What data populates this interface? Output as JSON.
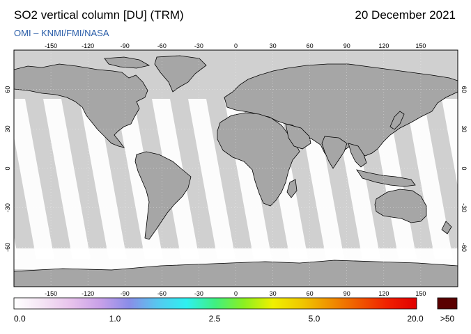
{
  "header": {
    "title": "SO2 vertical column [DU] (TRM)",
    "date": "20 December 2021",
    "subtitle": "OMI  –  KNMI/FMI/NASA"
  },
  "map": {
    "lon_ticks": [
      "-150",
      "-120",
      "-90",
      "-60",
      "-30",
      "0",
      "30",
      "60",
      "90",
      "120",
      "150"
    ],
    "lat_ticks": [
      "60",
      "30",
      "0",
      "-30",
      "-60"
    ],
    "colors": {
      "ocean_nodata": "#d0d0d0",
      "land": "#a6a6a6",
      "swath": "#ffffff",
      "coast": "#000000"
    }
  },
  "colorbar": {
    "labels": [
      "0.0",
      "1.0",
      "2.5",
      "5.0",
      "20.0"
    ],
    "overflow_label": ">50",
    "overflow_color": "#5a0000",
    "gradient": [
      "#ffffff",
      "#f4e4f4",
      "#e7c2ec",
      "#c8a0e8",
      "#8a8de8",
      "#56c8f0",
      "#2ef0f0",
      "#40f080",
      "#8cf020",
      "#f0f000",
      "#f0c800",
      "#f09000",
      "#f05800",
      "#f02000",
      "#e00000"
    ]
  }
}
